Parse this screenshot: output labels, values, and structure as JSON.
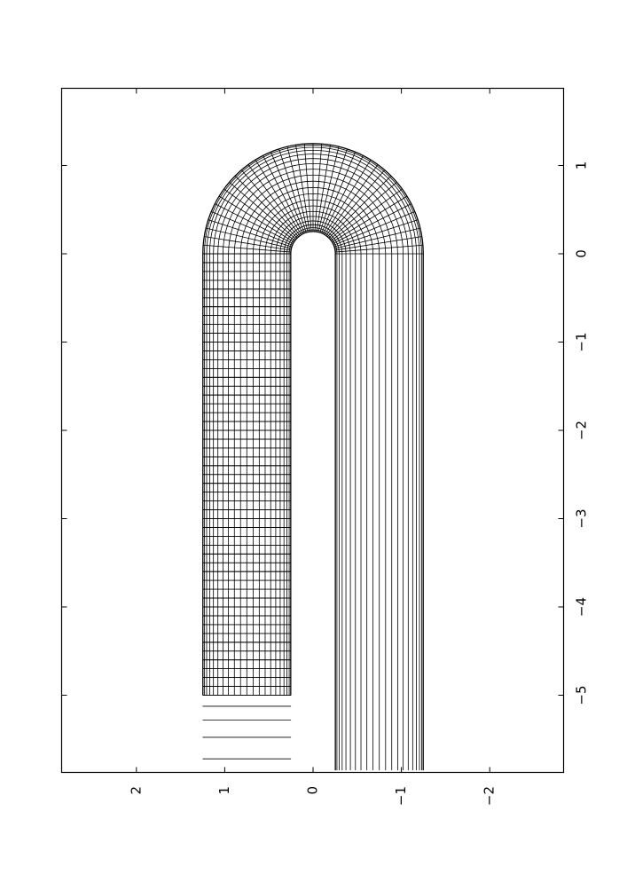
{
  "chart_data": {
    "type": "mesh",
    "rotated": "90° clockwise (landscape figure printed on portrait page)",
    "description": "Structured quadrilateral mesh of a U-shaped channel (hairpin bend)",
    "x_ticks": [
      {
        "value": -5,
        "label": "−5"
      },
      {
        "value": -4,
        "label": "−4"
      },
      {
        "value": -3,
        "label": "−3"
      },
      {
        "value": -2,
        "label": "−2"
      },
      {
        "value": -1,
        "label": "−1"
      },
      {
        "value": 0,
        "label": "0"
      },
      {
        "value": 1,
        "label": "1"
      }
    ],
    "y_ticks": [
      {
        "value": 2,
        "label": "2"
      },
      {
        "value": 1,
        "label": "1"
      },
      {
        "value": 0,
        "label": "0"
      },
      {
        "value": -1,
        "label": "−1"
      },
      {
        "value": -2,
        "label": "−2"
      }
    ],
    "xlim": [
      -5.85,
      1.85
    ],
    "ylim": [
      -2.8,
      2.9
    ],
    "geometry": {
      "upper_leg": {
        "y_inner": 0.25,
        "y_outer": 1.25,
        "x_start": -5.0,
        "x_end": 0.0
      },
      "lower_leg": {
        "y_inner": -0.25,
        "y_outer": -1.25,
        "x_start": -5.85,
        "x_end": 0.0
      },
      "bend": {
        "center": [
          0,
          0
        ],
        "r_inner": 0.25,
        "r_outer": 1.25
      }
    },
    "grid": false,
    "line_color": "#000000"
  }
}
